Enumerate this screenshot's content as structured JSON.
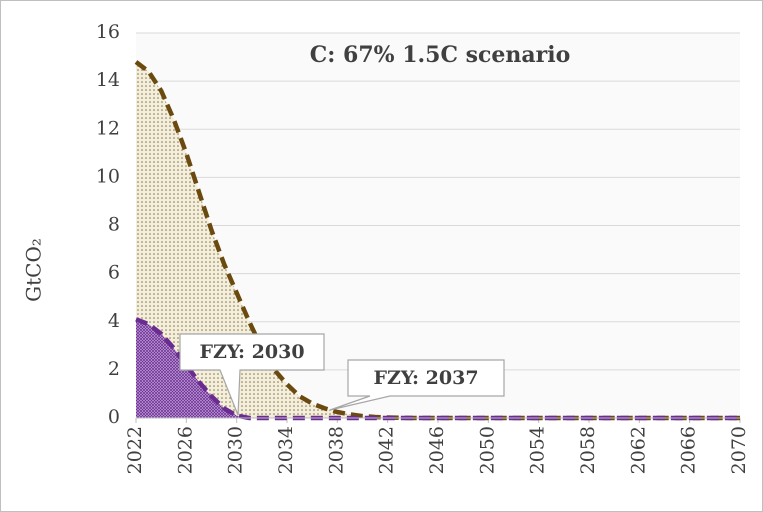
{
  "chart_data": {
    "type": "area",
    "title": "C: 67% 1.5C scenario",
    "y_label": "GtCO₂",
    "annotations": [
      "FZY: 2030",
      "FZY: 2037"
    ],
    "x": [
      2022,
      2023,
      2024,
      2025,
      2026,
      2027,
      2028,
      2029,
      2030,
      2031,
      2032,
      2033,
      2034,
      2035,
      2036,
      2037,
      2038,
      2039,
      2040,
      2041,
      2042,
      2043,
      2044,
      2045,
      2046,
      2047,
      2048,
      2049,
      2050,
      2051,
      2052,
      2053,
      2054,
      2055,
      2056,
      2057,
      2058,
      2059,
      2060,
      2061,
      2062,
      2063,
      2064,
      2065,
      2066,
      2067,
      2068,
      2069,
      2070
    ],
    "xlim": [
      2022,
      2070
    ],
    "xticks": [
      2022,
      2026,
      2030,
      2034,
      2038,
      2042,
      2046,
      2050,
      2054,
      2058,
      2062,
      2066,
      2070
    ],
    "ylim": [
      0,
      16
    ],
    "yticks": [
      0,
      2,
      4,
      6,
      8,
      10,
      12,
      14,
      16
    ],
    "grid": true,
    "series": [
      {
        "name": "FZY 2037",
        "color": "#6b4a10",
        "fill": "#f2ead3",
        "values": [
          14.8,
          14.4,
          13.6,
          12.4,
          11.0,
          9.4,
          7.8,
          6.4,
          5.2,
          4.0,
          2.9,
          2.0,
          1.4,
          0.9,
          0.6,
          0.4,
          0.25,
          0.15,
          0.08,
          0.04,
          0.02,
          0.01,
          0,
          0,
          0,
          0,
          0,
          0,
          0,
          0,
          0,
          0,
          0,
          0,
          0,
          0,
          0,
          0,
          0,
          0,
          0,
          0,
          0,
          0,
          0,
          0,
          0,
          0,
          0
        ]
      },
      {
        "name": "FZY 2030",
        "color": "#6a2c91",
        "fill": "#b58fd0",
        "values": [
          4.1,
          3.9,
          3.5,
          2.9,
          2.2,
          1.5,
          0.9,
          0.4,
          0.1,
          0,
          0,
          0,
          0,
          0,
          0,
          0,
          0,
          0,
          0,
          0,
          0,
          0,
          0,
          0,
          0,
          0,
          0,
          0,
          0,
          0,
          0,
          0,
          0,
          0,
          0,
          0,
          0,
          0,
          0,
          0,
          0,
          0,
          0,
          0,
          0,
          0,
          0,
          0,
          0
        ]
      }
    ]
  }
}
